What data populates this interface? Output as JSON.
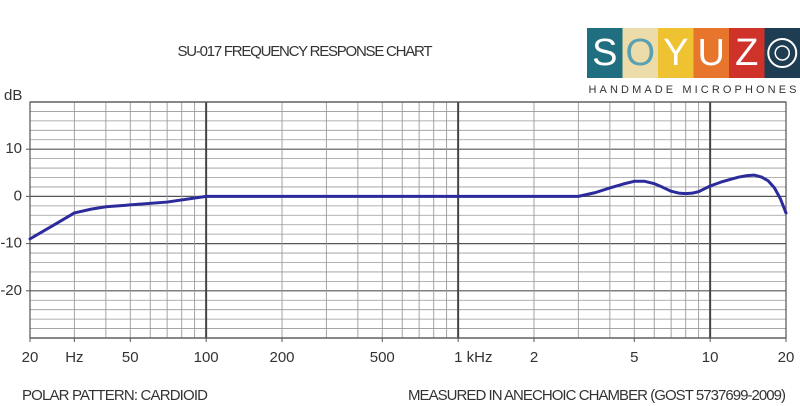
{
  "chart_data": {
    "type": "line",
    "title": "SU-017 FREQUENCY RESPONSE CHART",
    "y_unit": "dB",
    "footer_left": "POLAR PATTERN: CARDIOID",
    "footer_right": "MEASURED IN ANECHOIC CHAMBER (GOST 5737699-2009)",
    "logo": {
      "letters": [
        "S",
        "O",
        "Y",
        "U",
        "Z"
      ],
      "colors": [
        "#1f6f80",
        "#ecdcaa",
        "#efc232",
        "#e8752c",
        "#cf3229",
        "#1e3d52"
      ],
      "tagline": "HANDMADE MICROPHONES"
    },
    "xscale": "log",
    "xlim": [
      20,
      20000
    ],
    "ylim": [
      -30,
      20
    ],
    "xticks": [
      20,
      {
        "value": 30,
        "label": "Hz"
      },
      50,
      100,
      200,
      500,
      {
        "value": 1000,
        "label": "1 kHz"
      },
      {
        "value": 2000,
        "label": "2"
      },
      {
        "value": 5000,
        "label": "5"
      },
      {
        "value": 10000,
        "label": "10"
      },
      {
        "value": 20000,
        "label": "20"
      }
    ],
    "yticks": [
      10,
      0,
      -10,
      -20
    ],
    "xgrid": [
      20,
      30,
      40,
      50,
      60,
      70,
      80,
      90,
      100,
      200,
      300,
      400,
      500,
      600,
      700,
      800,
      900,
      1000,
      2000,
      3000,
      4000,
      5000,
      6000,
      7000,
      8000,
      9000,
      10000,
      20000
    ],
    "ygrid": [
      20,
      18,
      16,
      14,
      12,
      10,
      8,
      6,
      4,
      2,
      0,
      -2,
      -4,
      -6,
      -8,
      -10,
      -12,
      -14,
      -16,
      -18,
      -20,
      -22,
      -24,
      -26,
      -28,
      -30
    ],
    "grid": true,
    "series": [
      {
        "name": "SU-017",
        "color": "#2b2b9c",
        "x": [
          20,
          25,
          30,
          35,
          40,
          50,
          70,
          100,
          200,
          500,
          1000,
          2000,
          3000,
          3500,
          4000,
          4500,
          5000,
          5500,
          6000,
          6500,
          7000,
          7500,
          8000,
          8500,
          9000,
          10000,
          11000,
          12000,
          13000,
          14000,
          15000,
          16000,
          17000,
          18000,
          19000,
          20000
        ],
        "values": [
          -9,
          -6,
          -3.5,
          -2.7,
          -2.2,
          -1.8,
          -1.2,
          0,
          0,
          0,
          0,
          0,
          0,
          0.8,
          1.8,
          2.6,
          3.2,
          3.2,
          2.7,
          1.9,
          1.1,
          0.7,
          0.6,
          0.7,
          1.0,
          2.2,
          3.0,
          3.6,
          4.1,
          4.4,
          4.5,
          4.1,
          3.3,
          1.8,
          -0.5,
          -3.5
        ]
      }
    ]
  }
}
